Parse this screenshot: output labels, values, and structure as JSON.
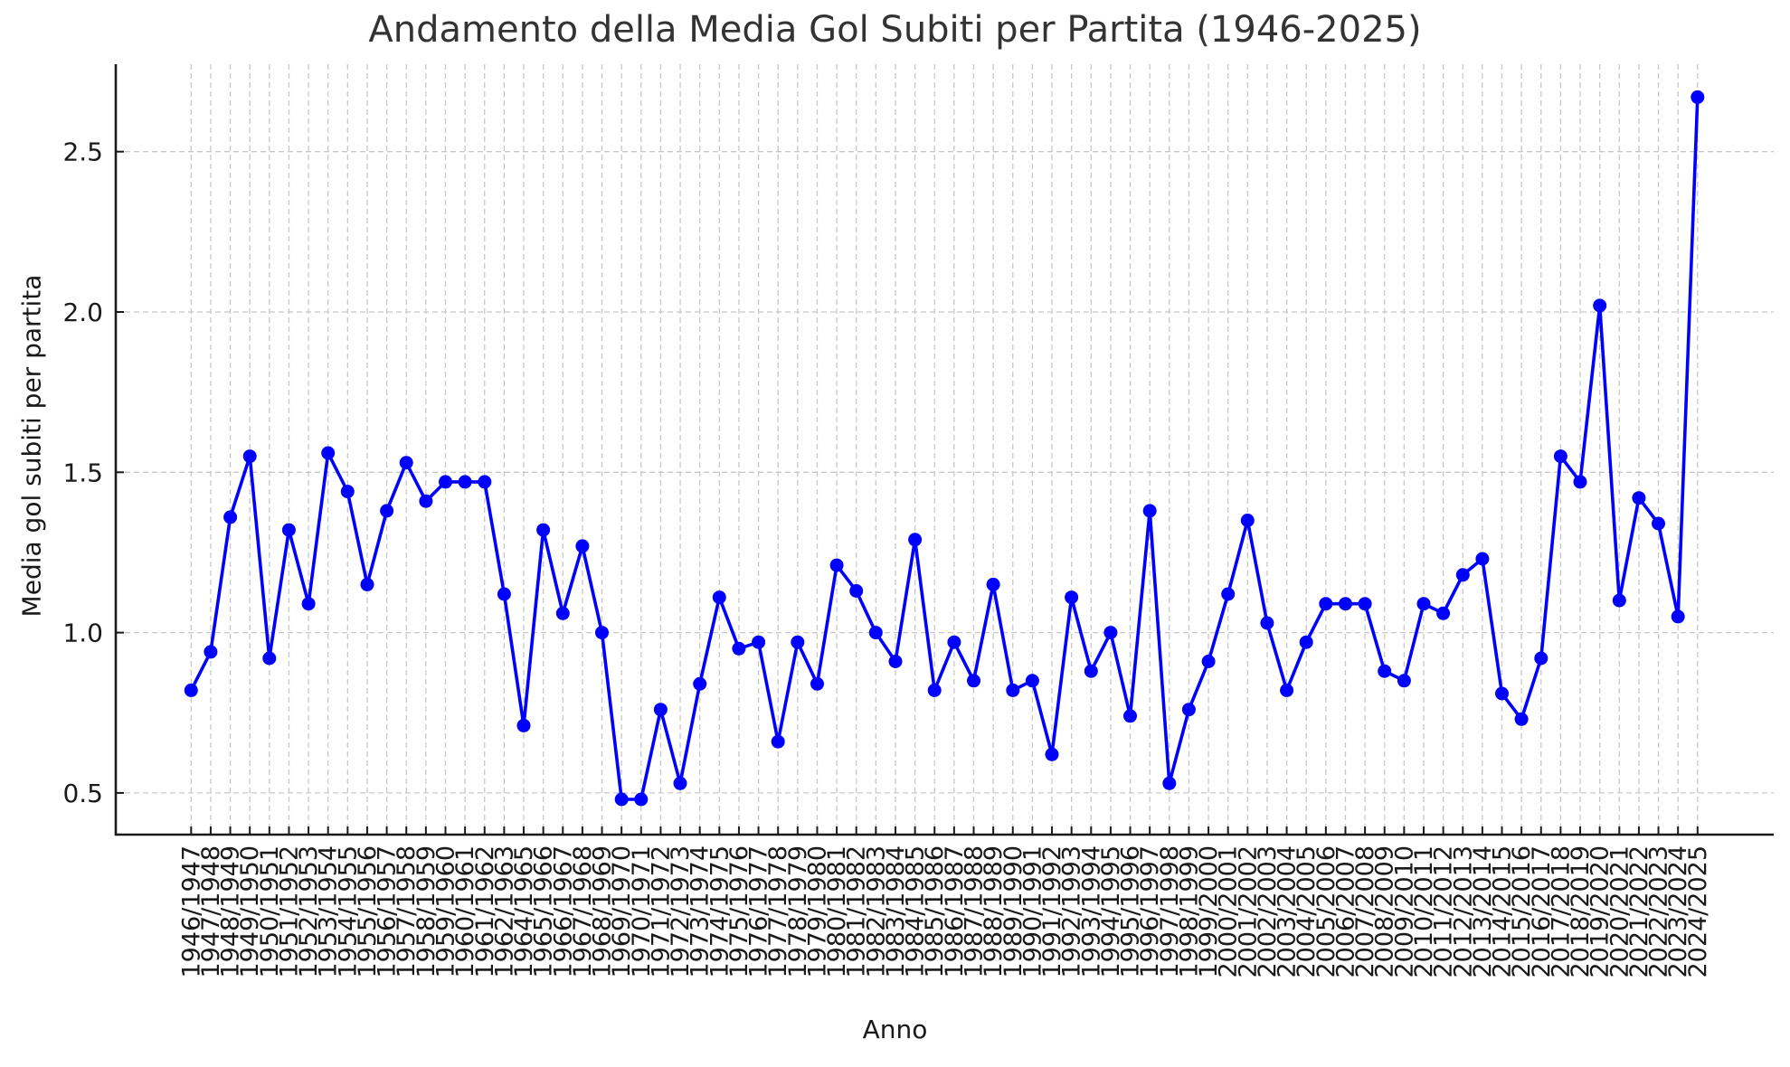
{
  "chart_data": {
    "type": "line",
    "title": "Andamento della Media Gol Subiti per Partita (1946-2025)",
    "xlabel": "Anno",
    "ylabel": "Media gol subiti per partita",
    "ylim": [
      0.36,
      2.78
    ],
    "yticks": [
      0.5,
      1.0,
      1.5,
      2.0,
      2.5
    ],
    "ytick_labels": [
      "0.5",
      "1.0",
      "1.5",
      "2.0",
      "2.5"
    ],
    "grid": true,
    "legend": null,
    "series": [
      {
        "name": "Media gol subiti per partita",
        "color": "#0000ff",
        "marker": "o",
        "values": [
          0.82,
          0.94,
          1.36,
          1.55,
          0.92,
          1.32,
          1.09,
          1.56,
          1.44,
          1.15,
          1.38,
          1.53,
          1.41,
          1.47,
          1.47,
          1.47,
          1.12,
          0.71,
          1.32,
          1.06,
          1.27,
          1.0,
          0.48,
          0.48,
          0.76,
          0.53,
          0.84,
          1.11,
          0.95,
          0.97,
          0.66,
          0.97,
          0.84,
          1.21,
          1.13,
          1.0,
          0.91,
          1.29,
          0.82,
          0.97,
          0.85,
          1.15,
          0.82,
          0.85,
          0.62,
          1.11,
          0.88,
          1.0,
          0.74,
          1.38,
          0.53,
          0.76,
          0.91,
          1.12,
          1.35,
          1.03,
          0.82,
          0.97,
          1.09,
          1.09,
          1.09,
          0.88,
          0.85,
          1.09,
          1.06,
          1.18,
          1.23,
          0.81,
          0.73,
          0.92,
          1.55,
          1.47,
          2.02,
          1.1,
          1.42,
          1.34,
          1.05,
          2.67
        ]
      }
    ],
    "categories": [
      "1946/1947",
      "1947/1948",
      "1948/1949",
      "1949/1950",
      "1950/1951",
      "1951/1952",
      "1952/1953",
      "1953/1954",
      "1954/1955",
      "1955/1956",
      "1956/1957",
      "1957/1958",
      "1958/1959",
      "1959/1960",
      "1960/1961",
      "1961/1962",
      "1962/1963",
      "1964/1965",
      "1965/1966",
      "1966/1967",
      "1967/1968",
      "1968/1969",
      "1969/1970",
      "1970/1971",
      "1971/1972",
      "1972/1973",
      "1973/1974",
      "1974/1975",
      "1975/1976",
      "1976/1977",
      "1977/1978",
      "1978/1979",
      "1979/1980",
      "1980/1981",
      "1981/1982",
      "1982/1983",
      "1983/1984",
      "1984/1985",
      "1985/1986",
      "1986/1987",
      "1987/1988",
      "1988/1989",
      "1989/1990",
      "1990/1991",
      "1991/1992",
      "1992/1993",
      "1993/1994",
      "1994/1995",
      "1995/1996",
      "1996/1997",
      "1997/1998",
      "1998/1999",
      "1999/2000",
      "2000/2001",
      "2001/2002",
      "2002/2003",
      "2003/2004",
      "2004/2005",
      "2005/2006",
      "2006/2007",
      "2007/2008",
      "2008/2009",
      "2009/2010",
      "2010/2011",
      "2011/2012",
      "2012/2013",
      "2013/2014",
      "2014/2015",
      "2015/2016",
      "2016/2017",
      "2017/2018",
      "2018/2019",
      "2019/2020",
      "2020/2021",
      "2021/2022",
      "2022/2023",
      "2023/2024",
      "2024/2025"
    ]
  },
  "colors": {
    "line": "#0000ff",
    "axis": "#1a1a1a",
    "grid": "#c8c8c8",
    "title": "#333333",
    "text": "#1a1a1a"
  }
}
